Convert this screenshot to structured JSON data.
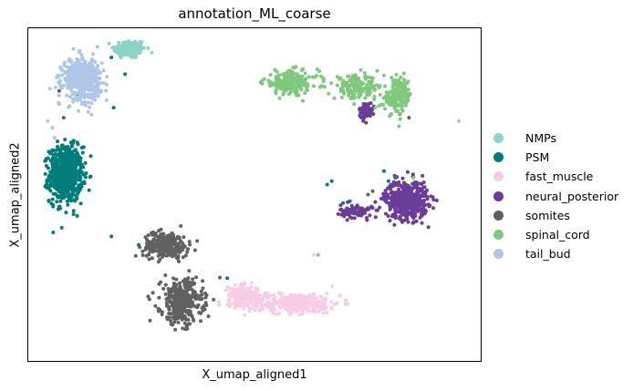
{
  "chart_data": {
    "type": "scatter",
    "title": "annotation_ML_coarse",
    "xlabel": "X_umap_aligned1",
    "ylabel": "X_umap_aligned2",
    "xlim": [
      0,
      100
    ],
    "ylim": [
      0,
      100
    ],
    "grid": false,
    "legend_placement": "right",
    "legend": [
      {
        "name": "NMPs",
        "color": "#8dd3c7"
      },
      {
        "name": "PSM",
        "color": "#007c7c"
      },
      {
        "name": "fast_muscle",
        "color": "#f7cde6"
      },
      {
        "name": "neural_posterior",
        "color": "#6a3d9a"
      },
      {
        "name": "somites",
        "color": "#616161"
      },
      {
        "name": "spinal_cord",
        "color": "#7fc97f"
      },
      {
        "name": "tail_bud",
        "color": "#aec7e8"
      }
    ],
    "series": [
      {
        "name": "NMPs",
        "color": "#8dd3c7",
        "n": 160,
        "clusters": [
          {
            "x": 22.5,
            "y": 93.5,
            "sx": 3.2,
            "sy": 2.6,
            "w": 1
          }
        ],
        "points": [
          {
            "x": 95,
            "y": 72
          }
        ]
      },
      {
        "name": "PSM",
        "color": "#007c7c",
        "n": 700,
        "clusters": [
          {
            "x": 8.5,
            "y": 56,
            "sx": 3.3,
            "sy": 7.5,
            "w": 1
          }
        ],
        "points": [
          {
            "x": 18.5,
            "y": 37.5
          },
          {
            "x": 24.5,
            "y": 35
          },
          {
            "x": 19,
            "y": 76
          },
          {
            "x": 11,
            "y": 80
          },
          {
            "x": 18.5,
            "y": 91
          },
          {
            "x": 21.5,
            "y": 86
          },
          {
            "x": 67,
            "y": 54
          },
          {
            "x": 66,
            "y": 53
          },
          {
            "x": 69.5,
            "y": 47.5
          },
          {
            "x": 71,
            "y": 48
          },
          {
            "x": 78.5,
            "y": 57
          },
          {
            "x": 79.5,
            "y": 54
          },
          {
            "x": 44,
            "y": 25
          }
        ]
      },
      {
        "name": "fast_muscle",
        "color": "#f7cde6",
        "n": 520,
        "clusters": [
          {
            "x": 58.5,
            "y": 17.5,
            "sx": 9.5,
            "sy": 2.7,
            "w": 0.7
          },
          {
            "x": 47.5,
            "y": 20,
            "sx": 3.0,
            "sy": 2.6,
            "w": 0.3
          }
        ],
        "points": [
          {
            "x": 63,
            "y": 32
          }
        ]
      },
      {
        "name": "neural_posterior",
        "color": "#6a3d9a",
        "n": 650,
        "clusters": [
          {
            "x": 83.5,
            "y": 48.5,
            "sx": 4.2,
            "sy": 5.2,
            "w": 0.75
          },
          {
            "x": 72.5,
            "y": 45,
            "sx": 3.2,
            "sy": 1.8,
            "w": 0.15
          },
          {
            "x": 74.5,
            "y": 75,
            "sx": 1.3,
            "sy": 2.2,
            "w": 0.1
          }
        ],
        "points": []
      },
      {
        "name": "somites",
        "color": "#616161",
        "n": 600,
        "clusters": [
          {
            "x": 30.5,
            "y": 35,
            "sx": 4.5,
            "sy": 3.5,
            "w": 0.45
          },
          {
            "x": 34,
            "y": 18,
            "sx": 4.2,
            "sy": 6.0,
            "w": 0.55
          }
        ],
        "points": [
          {
            "x": 7,
            "y": 81
          },
          {
            "x": 8,
            "y": 73
          },
          {
            "x": 12,
            "y": 85
          },
          {
            "x": 75,
            "y": 50
          },
          {
            "x": 76,
            "y": 51
          },
          {
            "x": 82,
            "y": 74
          },
          {
            "x": 84,
            "y": 73
          },
          {
            "x": 81,
            "y": 55
          }
        ]
      },
      {
        "name": "spinal_cord",
        "color": "#7fc97f",
        "n": 520,
        "clusters": [
          {
            "x": 58,
            "y": 83.5,
            "sx": 5.5,
            "sy": 3.2,
            "w": 0.4
          },
          {
            "x": 72.5,
            "y": 82,
            "sx": 4.5,
            "sy": 3.2,
            "w": 0.3
          },
          {
            "x": 81.5,
            "y": 79.5,
            "sx": 2.8,
            "sy": 4.8,
            "w": 0.3
          }
        ],
        "points": [
          {
            "x": 85,
            "y": 55
          },
          {
            "x": 64,
            "y": 32
          }
        ]
      },
      {
        "name": "tail_bud",
        "color": "#aec7e8",
        "n": 480,
        "clusters": [
          {
            "x": 12,
            "y": 84.5,
            "sx": 3.8,
            "sy": 5.5,
            "w": 1
          }
        ],
        "points": [
          {
            "x": 5.5,
            "y": 70
          },
          {
            "x": 4.5,
            "y": 72
          },
          {
            "x": 6,
            "y": 67
          }
        ]
      }
    ]
  }
}
